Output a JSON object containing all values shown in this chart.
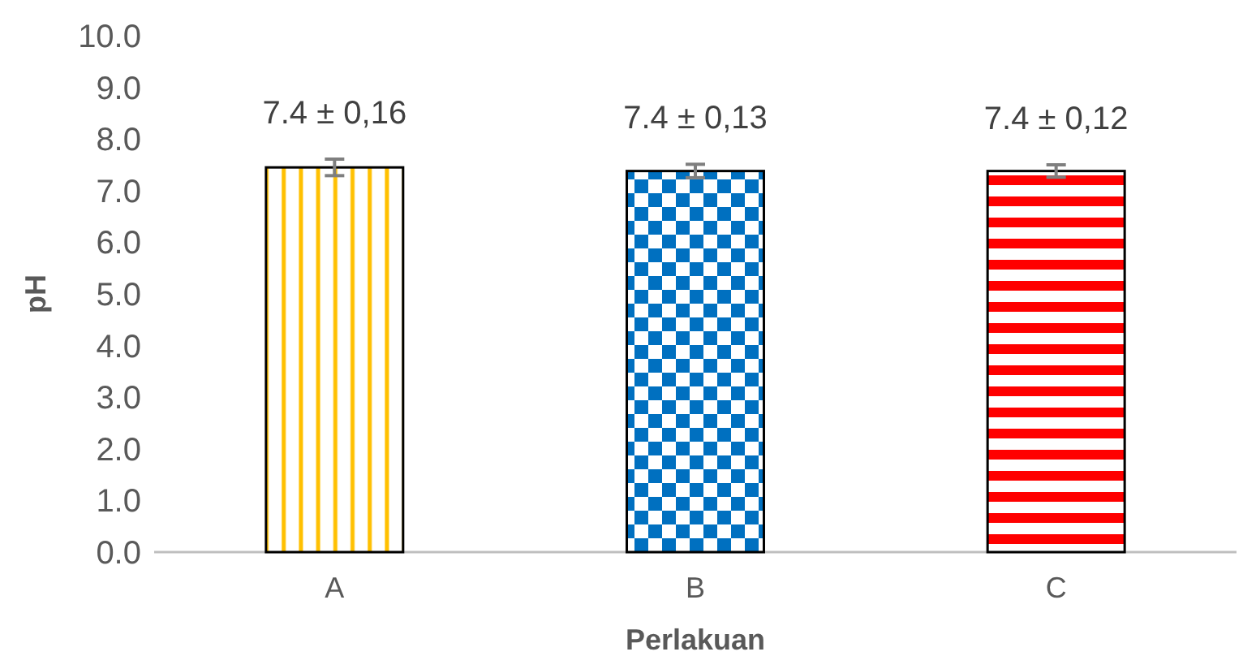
{
  "chart_data": {
    "type": "bar",
    "xlabel": "Perlakuan",
    "ylabel": "pH",
    "categories": [
      "A",
      "B",
      "C"
    ],
    "values": [
      7.45,
      7.38,
      7.38
    ],
    "errors": [
      0.16,
      0.13,
      0.12
    ],
    "colors": [
      "#ffc000",
      "#0070c0",
      "#ff0000"
    ],
    "value_labels": [
      "7.4 ± 0,16",
      "7.4 ± 0,13",
      "7.4 ± 0,12"
    ],
    "ylim": [
      0,
      10
    ],
    "yticks": [
      {
        "value": 0,
        "label": "0.0"
      },
      {
        "value": 1,
        "label": "1.0"
      },
      {
        "value": 2,
        "label": "2.0"
      },
      {
        "value": 3,
        "label": "3.0"
      },
      {
        "value": 4,
        "label": "4.0"
      },
      {
        "value": 5,
        "label": "5.0"
      },
      {
        "value": 6,
        "label": "6.0"
      },
      {
        "value": 7,
        "label": "7.0"
      },
      {
        "value": 8,
        "label": "8.0"
      },
      {
        "value": 9,
        "label": "9.0"
      },
      {
        "value": 10,
        "label": "10.0"
      }
    ],
    "grid": false
  }
}
